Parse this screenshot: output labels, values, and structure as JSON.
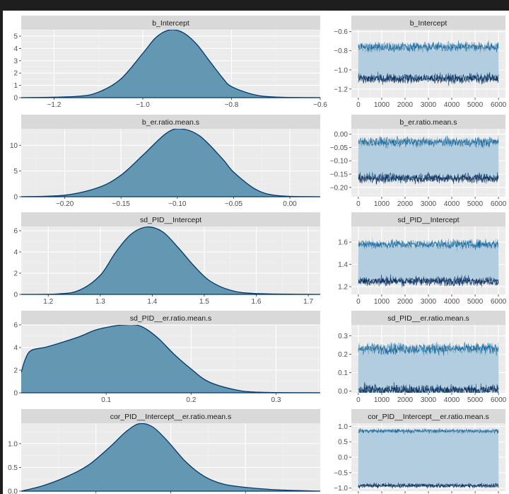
{
  "colors": {
    "fill": "#6497b1",
    "line": "#03396c",
    "panel_bg": "#ebebeb",
    "strip_bg": "#d9d9d9",
    "chains": [
      "#d1e1ec",
      "#b3cde0",
      "#6497b1",
      "#005b96",
      "#03396c",
      "#011f4b"
    ]
  },
  "chart_data": [
    {
      "type": "area",
      "title": "b_Intercept",
      "xlim": [
        -1.274,
        -0.6
      ],
      "ylim": [
        0,
        5.52
      ],
      "xticks": [
        -1.2,
        -1.0,
        -0.8,
        -0.6
      ],
      "xtick_labels": [
        "−1.2",
        "−1.0",
        "−0.8",
        "−0.6"
      ],
      "yticks": [
        0,
        1,
        2,
        3,
        4,
        5
      ],
      "ytick_labels": [
        "0",
        "1",
        "2",
        "3",
        "4",
        "5"
      ],
      "x": [
        -1.274,
        -1.15,
        -1.1,
        -1.05,
        -1.0,
        -0.97,
        -0.94,
        -0.91,
        -0.88,
        -0.85,
        -0.82,
        -0.8,
        -0.75,
        -0.7,
        -0.6
      ],
      "y": [
        0,
        0.1,
        0.45,
        1.5,
        3.6,
        4.9,
        5.5,
        5.3,
        4.4,
        3.0,
        1.6,
        0.9,
        0.25,
        0.05,
        0
      ],
      "trace": {
        "title": "b_Intercept",
        "xlim": [
          -300,
          6300
        ],
        "ylim": [
          -1.29,
          -0.58
        ],
        "xticks": [
          0,
          1000,
          2000,
          3000,
          4000,
          5000,
          6000
        ],
        "xtick_labels": [
          "0",
          "1000",
          "2000",
          "3000",
          "4000",
          "5000",
          "6000"
        ],
        "yticks": [
          -0.6,
          -0.8,
          -1.0,
          -1.2
        ],
        "ytick_labels": [
          "−0.6",
          "−0.8",
          "−1.0",
          "−1.2"
        ],
        "modes": [
          -0.76,
          -1.09
        ],
        "spread": 0.05
      }
    },
    {
      "type": "area",
      "title": "b_er.ratio.mean.s",
      "xlim": [
        -0.2387,
        0.027
      ],
      "ylim": [
        0,
        13.2
      ],
      "xticks": [
        -0.2,
        -0.15,
        -0.1,
        -0.05,
        0.0
      ],
      "xtick_labels": [
        "−0.20",
        "−0.15",
        "−0.10",
        "−0.05",
        "0.00"
      ],
      "yticks": [
        0,
        5,
        10
      ],
      "ytick_labels": [
        "0",
        "5",
        "10"
      ],
      "x": [
        -0.2387,
        -0.2,
        -0.17,
        -0.15,
        -0.13,
        -0.11,
        -0.097,
        -0.08,
        -0.06,
        -0.05,
        -0.03,
        -0.01,
        0.027
      ],
      "y": [
        0,
        0.3,
        1.8,
        4.2,
        8.2,
        12.3,
        13.2,
        11.8,
        7.4,
        4.8,
        1.4,
        0.2,
        0
      ],
      "trace": {
        "title": "b_er.ratio.mean.s",
        "xlim": [
          -300,
          6300
        ],
        "ylim": [
          -0.235,
          0.02
        ],
        "xticks": [
          0,
          1000,
          2000,
          3000,
          4000,
          5000,
          6000
        ],
        "xtick_labels": [
          "0",
          "1000",
          "2000",
          "3000",
          "4000",
          "5000",
          "6000"
        ],
        "yticks": [
          0.0,
          -0.05,
          -0.1,
          -0.15,
          -0.2
        ],
        "ytick_labels": [
          "0.00",
          "−0.05",
          "−0.10",
          "−0.15",
          "−0.20"
        ],
        "modes": [
          -0.03,
          -0.165
        ],
        "spread": 0.018
      }
    },
    {
      "type": "area",
      "title": "sd_PID__Intercept",
      "xlim": [
        1.148,
        1.723
      ],
      "ylim": [
        0,
        6.4
      ],
      "xticks": [
        1.2,
        1.3,
        1.4,
        1.5,
        1.6,
        1.7
      ],
      "xtick_labels": [
        "1.2",
        "1.3",
        "1.4",
        "1.5",
        "1.6",
        "1.7"
      ],
      "yticks": [
        0,
        2,
        4,
        6
      ],
      "ytick_labels": [
        "0",
        "2",
        "4",
        "6"
      ],
      "x": [
        1.148,
        1.22,
        1.26,
        1.3,
        1.33,
        1.36,
        1.39,
        1.42,
        1.45,
        1.48,
        1.51,
        1.55,
        1.6,
        1.723
      ],
      "y": [
        0,
        0.05,
        0.4,
        1.8,
        4.0,
        5.7,
        6.35,
        5.9,
        4.4,
        2.7,
        1.3,
        0.4,
        0.08,
        0
      ],
      "trace": {
        "title": "sd_PID__Intercept",
        "xlim": [
          -300,
          6300
        ],
        "ylim": [
          1.13,
          1.74
        ],
        "xticks": [
          0,
          1000,
          2000,
          3000,
          4000,
          5000,
          6000
        ],
        "xtick_labels": [
          "0",
          "1000",
          "2000",
          "3000",
          "4000",
          "5000",
          "6000"
        ],
        "yticks": [
          1.6,
          1.4,
          1.2
        ],
        "ytick_labels": [
          "1.6",
          "1.4",
          "1.2"
        ],
        "modes": [
          1.58,
          1.25
        ],
        "spread": 0.04
      }
    },
    {
      "type": "area",
      "title": "sd_PID__er.ratio.mean.s",
      "xlim": [
        0.0,
        0.352
      ],
      "ylim": [
        0,
        6.0
      ],
      "xticks": [
        0.1,
        0.2,
        0.3
      ],
      "xtick_labels": [
        "0.1",
        "0.2",
        "0.3"
      ],
      "yticks": [
        0,
        2,
        4,
        6
      ],
      "ytick_labels": [
        "0",
        "2",
        "4",
        "6"
      ],
      "x": [
        0,
        0.005,
        0.012,
        0.03,
        0.05,
        0.07,
        0.09,
        0.12,
        0.14,
        0.16,
        0.18,
        0.2,
        0.22,
        0.25,
        0.28,
        0.352
      ],
      "y": [
        1.8,
        3.0,
        3.75,
        4.05,
        4.5,
        5.0,
        5.6,
        6.0,
        5.9,
        4.9,
        3.4,
        2.1,
        1.0,
        0.3,
        0.05,
        0
      ],
      "trace": {
        "title": "sd_PID__er.ratio.mean.s",
        "xlim": [
          -300,
          6300
        ],
        "ylim": [
          -0.01,
          0.36
        ],
        "xticks": [
          0,
          1000,
          2000,
          3000,
          4000,
          5000,
          6000
        ],
        "xtick_labels": [
          "0",
          "1000",
          "2000",
          "3000",
          "4000",
          "5000",
          "6000"
        ],
        "yticks": [
          0.3,
          0.2,
          0.1,
          0.0
        ],
        "ytick_labels": [
          "0.3",
          "0.2",
          "0.1",
          "0.0"
        ],
        "modes": [
          0.23,
          0.005
        ],
        "spread": 0.03
      }
    },
    {
      "type": "area",
      "title": "cor_PID__Intercept__er.ratio.mean.s",
      "xlim": [
        -1,
        1
      ],
      "ylim": [
        0,
        1.43
      ],
      "xticks": [
        -0.5,
        0.0,
        0.5
      ],
      "xtick_labels": [],
      "yticks": [
        0,
        0.5,
        1.0
      ],
      "ytick_labels": [
        "0.0",
        "0.5",
        "1.0"
      ],
      "x": [
        -1,
        -0.85,
        -0.7,
        -0.55,
        -0.4,
        -0.3,
        -0.21,
        -0.12,
        -0.02,
        0.1,
        0.22,
        0.35,
        0.5,
        0.7,
        1
      ],
      "y": [
        0,
        0.12,
        0.3,
        0.55,
        0.95,
        1.25,
        1.42,
        1.35,
        1.05,
        0.62,
        0.32,
        0.15,
        0.08,
        0.03,
        0
      ],
      "trace": {
        "title": "cor_PID__Intercept__er.ratio.mean.s",
        "xlim": [
          -300,
          6300
        ],
        "ylim": [
          -1.1,
          1.1
        ],
        "xticks": [
          0,
          1000,
          2000,
          3000,
          4000,
          5000,
          6000
        ],
        "xtick_labels": [],
        "yticks": [
          1.0,
          0.5,
          0.0,
          -0.5,
          -1.0
        ],
        "ytick_labels": [
          "1.0",
          "0.5",
          "0.0",
          "−0.5",
          "−1.0"
        ],
        "modes": [
          0.85,
          -0.92
        ],
        "spread": 0.07
      }
    }
  ]
}
